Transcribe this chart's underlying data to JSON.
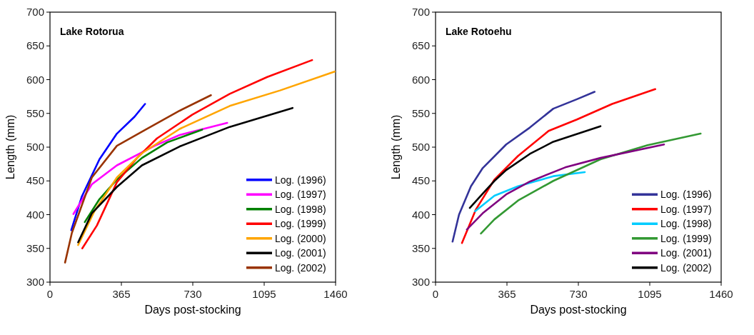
{
  "chart_data": [
    {
      "type": "line",
      "title": "Lake Rotorua",
      "xlabel": "Days post-stocking",
      "ylabel": "Length (mm)",
      "xlim": [
        0,
        1460
      ],
      "xticks": [
        0,
        365,
        730,
        1095,
        1460
      ],
      "ylim": [
        300,
        700
      ],
      "yticks": [
        300,
        350,
        400,
        450,
        500,
        550,
        600,
        650,
        700
      ],
      "legend": "bottom right",
      "series": [
        {
          "name": "Log. (1996)",
          "color": "#0000ff",
          "x": [
            109,
            163,
            253,
            342,
            432,
            486
          ],
          "values": [
            377,
            427,
            482,
            520,
            545,
            564
          ]
        },
        {
          "name": "Log. (1997)",
          "color": "#ff00ff",
          "x": [
            120,
            214,
            342,
            535,
            663,
            906
          ],
          "values": [
            401,
            445,
            473,
            502,
            518,
            536
          ]
        },
        {
          "name": "Log. (1998)",
          "color": "#008000",
          "x": [
            178,
            253,
            342,
            470,
            599,
            778
          ],
          "values": [
            389,
            423,
            452,
            484,
            507,
            526
          ]
        },
        {
          "name": "Log. (1999)",
          "color": "#ff0000",
          "x": [
            165,
            240,
            342,
            445,
            547,
            727,
            919,
            1111,
            1340
          ],
          "values": [
            350,
            384,
            448,
            484,
            513,
            548,
            579,
            604,
            629
          ]
        },
        {
          "name": "Log. (2000)",
          "color": "#ffa500",
          "x": [
            144,
            227,
            342,
            470,
            663,
            919,
            1176,
            1455
          ],
          "values": [
            355,
            405,
            455,
            491,
            527,
            561,
            584,
            612
          ]
        },
        {
          "name": "Log. (2001)",
          "color": "#000000",
          "x": [
            144,
            214,
            342,
            470,
            663,
            919,
            1240
          ],
          "values": [
            359,
            402,
            441,
            473,
            501,
            530,
            558
          ]
        },
        {
          "name": "Log. (2002)",
          "color": "#993300",
          "x": [
            77,
            112,
            214,
            342,
            483,
            663,
            823
          ],
          "values": [
            329,
            373,
            455,
            502,
            525,
            554,
            577
          ]
        }
      ]
    },
    {
      "type": "line",
      "title": "Lake Rotoehu",
      "xlabel": "Days post-stocking",
      "ylabel": "Length (mm)",
      "xlim": [
        0,
        1460
      ],
      "xticks": [
        0,
        365,
        730,
        1095,
        1460
      ],
      "ylim": [
        300,
        700
      ],
      "yticks": [
        300,
        350,
        400,
        450,
        500,
        550,
        600,
        650,
        700
      ],
      "legend": "bottom right",
      "series": [
        {
          "name": "Log. (1996)",
          "color": "#333399",
          "x": [
            87,
            120,
            181,
            241,
            361,
            482,
            602,
            723,
            813
          ],
          "values": [
            360,
            400,
            442,
            469,
            504,
            529,
            557,
            571,
            582
          ]
        },
        {
          "name": "Log. (1997)",
          "color": "#ff0000",
          "x": [
            135,
            205,
            301,
            422,
            578,
            723,
            903,
            1123
          ],
          "values": [
            358,
            407,
            452,
            487,
            524,
            541,
            564,
            586
          ]
        },
        {
          "name": "Log. (1998)",
          "color": "#00ccff",
          "x": [
            202,
            301,
            422,
            602,
            763
          ],
          "values": [
            405,
            428,
            442,
            457,
            463
          ]
        },
        {
          "name": "Log. (1999)",
          "color": "#339933",
          "x": [
            232,
            301,
            422,
            602,
            843,
            1084,
            1355
          ],
          "values": [
            372,
            393,
            421,
            450,
            482,
            503,
            520
          ]
        },
        {
          "name": "Log. (2001)",
          "color": "#800080",
          "x": [
            160,
            241,
            361,
            482,
            663,
            843,
            1168
          ],
          "values": [
            378,
            402,
            430,
            449,
            470,
            484,
            504
          ]
        },
        {
          "name": "Log. (2002)",
          "color": "#000000",
          "x": [
            175,
            241,
            301,
            361,
            482,
            602,
            843
          ],
          "values": [
            410,
            431,
            450,
            466,
            490,
            508,
            531
          ]
        }
      ]
    }
  ]
}
